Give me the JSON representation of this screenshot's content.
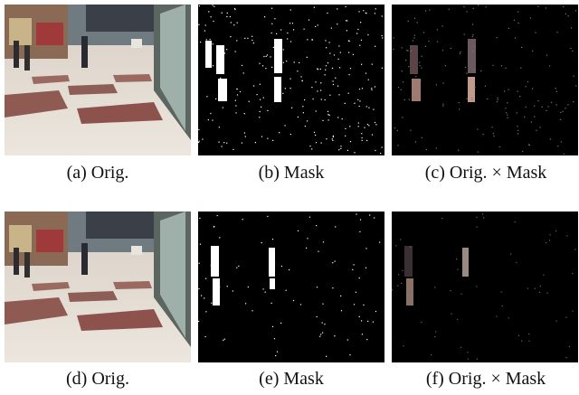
{
  "figure": {
    "panels": [
      {
        "caption": "(a) Orig."
      },
      {
        "caption": "(b) Mask"
      },
      {
        "caption": "(c) Orig. × Mask"
      },
      {
        "caption": "(d) Orig."
      },
      {
        "caption": "(e) Mask"
      },
      {
        "caption": "(f) Orig. × Mask"
      }
    ]
  }
}
